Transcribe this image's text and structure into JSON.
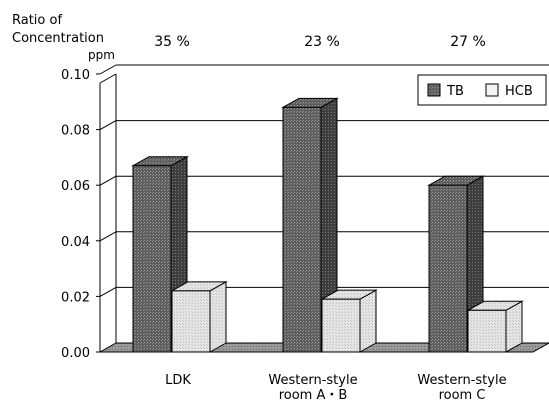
{
  "chart_data": {
    "type": "bar",
    "title": "",
    "ylabel_line1": "Ratio of",
    "ylabel_line2": "Concentration",
    "unit": "ppm",
    "ylim": [
      0,
      0.1
    ],
    "yticks": [
      "0.00",
      "0.02",
      "0.04",
      "0.06",
      "0.08",
      "0.10"
    ],
    "categories": [
      [
        "LDK"
      ],
      [
        "Western-style",
        "room A・B"
      ],
      [
        "Western-style",
        "room C"
      ]
    ],
    "ratios": [
      "35 %",
      "23 %",
      "27 %"
    ],
    "series": [
      {
        "name": "TB",
        "values": [
          0.067,
          0.088,
          0.06
        ]
      },
      {
        "name": "HCB",
        "values": [
          0.022,
          0.019,
          0.015
        ]
      }
    ],
    "legend_position": "top-right",
    "grid": true,
    "style": "3d",
    "colors": {
      "TB": "#6e6e6e",
      "HCB": "#f2f2f2",
      "grid": "#000000",
      "wall": "#ffffff",
      "floor": "#909090"
    }
  }
}
